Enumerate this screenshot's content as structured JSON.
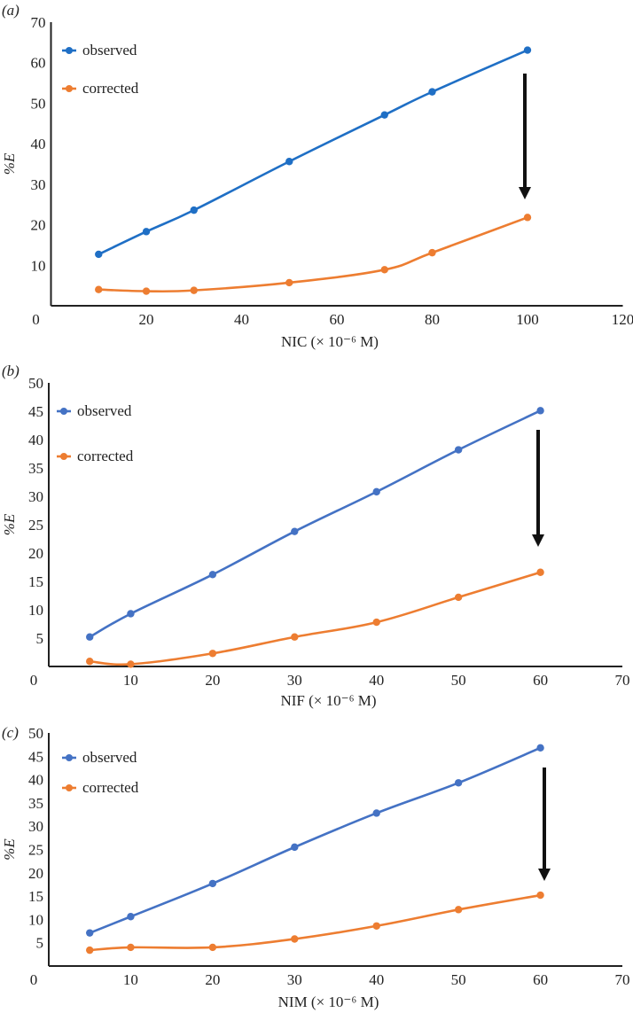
{
  "chart_data": [
    {
      "type": "line",
      "panel_label": "(a)",
      "xlabel": "NIC (× 10⁻⁶ M)",
      "ylabel": "%E",
      "xlim": [
        0,
        120
      ],
      "ylim": [
        0,
        70
      ],
      "xticks": [
        0,
        20,
        40,
        60,
        80,
        100,
        120
      ],
      "yticks": [
        10,
        20,
        30,
        40,
        50,
        60,
        70
      ],
      "legend_position": "top-left",
      "annotation": "downward arrow at x=100 from observed to corrected",
      "x": [
        10,
        20,
        30,
        50,
        70,
        80,
        100
      ],
      "series": [
        {
          "name": "observed",
          "color": "#1F6FC5",
          "values": [
            12.7,
            18.3,
            23.6,
            35.6,
            47.1,
            52.8,
            63.1
          ]
        },
        {
          "name": "corrected",
          "color": "#ED7D31",
          "values": [
            4.0,
            3.6,
            3.8,
            5.7,
            8.9,
            13.1,
            21.8
          ]
        }
      ]
    },
    {
      "type": "line",
      "panel_label": "(b)",
      "xlabel": "NIF (× 10⁻⁶ M)",
      "ylabel": "%E",
      "xlim": [
        0,
        70
      ],
      "ylim": [
        0,
        50
      ],
      "xticks": [
        0,
        10,
        20,
        30,
        40,
        50,
        60,
        70
      ],
      "yticks": [
        5,
        10,
        15,
        20,
        25,
        30,
        35,
        40,
        45,
        50
      ],
      "legend_position": "top-left",
      "annotation": "downward arrow at x=60 from observed to corrected",
      "x": [
        5,
        10,
        20,
        30,
        40,
        50,
        60
      ],
      "series": [
        {
          "name": "observed",
          "color": "#4472C4",
          "values": [
            5.2,
            9.3,
            16.2,
            23.8,
            30.8,
            38.2,
            45.1
          ]
        },
        {
          "name": "corrected",
          "color": "#ED7D31",
          "values": [
            0.9,
            0.4,
            2.3,
            5.2,
            7.8,
            12.2,
            16.6
          ]
        }
      ]
    },
    {
      "type": "line",
      "panel_label": "(c)",
      "xlabel": "NIM (× 10⁻⁶ M)",
      "ylabel": "%E",
      "xlim": [
        0,
        70
      ],
      "ylim": [
        0,
        50
      ],
      "xticks": [
        0,
        10,
        20,
        30,
        40,
        50,
        60,
        70
      ],
      "yticks": [
        5,
        10,
        15,
        20,
        25,
        30,
        35,
        40,
        45,
        50
      ],
      "legend_position": "top-left",
      "annotation": "downward arrow at x=60 from observed to corrected",
      "x": [
        5,
        10,
        20,
        30,
        40,
        50,
        60
      ],
      "series": [
        {
          "name": "observed",
          "color": "#4472C4",
          "values": [
            7.1,
            10.6,
            17.7,
            25.5,
            32.8,
            39.3,
            46.8
          ]
        },
        {
          "name": "corrected",
          "color": "#ED7D31",
          "values": [
            3.4,
            4.0,
            4.0,
            5.8,
            8.6,
            12.1,
            15.2
          ]
        }
      ]
    }
  ]
}
